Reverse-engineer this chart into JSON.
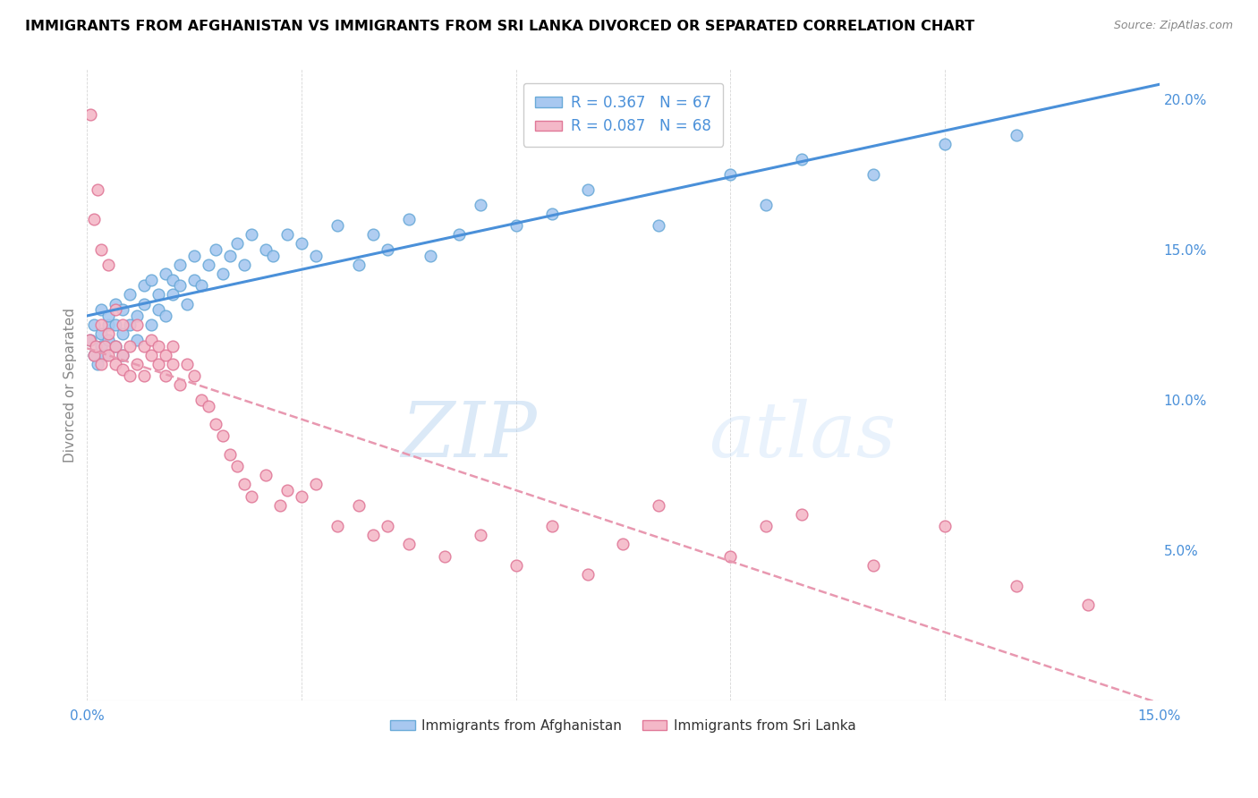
{
  "title": "IMMIGRANTS FROM AFGHANISTAN VS IMMIGRANTS FROM SRI LANKA DIVORCED OR SEPARATED CORRELATION CHART",
  "source": "Source: ZipAtlas.com",
  "ylabel": "Divorced or Separated",
  "legend_label1": "Immigrants from Afghanistan",
  "legend_label2": "Immigrants from Sri Lanka",
  "r1": 0.367,
  "n1": 67,
  "r2": 0.087,
  "n2": 68,
  "color1": "#a8c8f0",
  "color2": "#f4b8c8",
  "edge_color1": "#6aaad8",
  "edge_color2": "#e07898",
  "line_color1": "#4a90d9",
  "line_color2": "#e898b0",
  "xlim": [
    0.0,
    0.15
  ],
  "ylim": [
    0.0,
    0.21
  ],
  "xticks": [
    0.0,
    0.03,
    0.06,
    0.09,
    0.12,
    0.15
  ],
  "xtick_labels": [
    "0.0%",
    "",
    "",
    "",
    "",
    "15.0%"
  ],
  "yticks_right": [
    0.05,
    0.1,
    0.15,
    0.2
  ],
  "ytick_labels_right": [
    "5.0%",
    "10.0%",
    "15.0%",
    "20.0%"
  ],
  "watermark_zip": "ZIP",
  "watermark_atlas": "atlas",
  "afghanistan_x": [
    0.0005,
    0.001,
    0.001,
    0.0015,
    0.002,
    0.002,
    0.002,
    0.0025,
    0.003,
    0.003,
    0.003,
    0.004,
    0.004,
    0.004,
    0.005,
    0.005,
    0.005,
    0.006,
    0.006,
    0.007,
    0.007,
    0.008,
    0.008,
    0.009,
    0.009,
    0.01,
    0.01,
    0.011,
    0.011,
    0.012,
    0.012,
    0.013,
    0.013,
    0.014,
    0.015,
    0.015,
    0.016,
    0.017,
    0.018,
    0.019,
    0.02,
    0.021,
    0.022,
    0.023,
    0.025,
    0.026,
    0.028,
    0.03,
    0.032,
    0.035,
    0.038,
    0.04,
    0.042,
    0.045,
    0.048,
    0.052,
    0.055,
    0.06,
    0.065,
    0.07,
    0.08,
    0.09,
    0.095,
    0.1,
    0.11,
    0.12,
    0.13
  ],
  "afghanistan_y": [
    0.12,
    0.115,
    0.125,
    0.112,
    0.118,
    0.122,
    0.13,
    0.115,
    0.125,
    0.12,
    0.128,
    0.118,
    0.125,
    0.132,
    0.115,
    0.122,
    0.13,
    0.125,
    0.135,
    0.12,
    0.128,
    0.132,
    0.138,
    0.125,
    0.14,
    0.13,
    0.135,
    0.128,
    0.142,
    0.135,
    0.14,
    0.138,
    0.145,
    0.132,
    0.14,
    0.148,
    0.138,
    0.145,
    0.15,
    0.142,
    0.148,
    0.152,
    0.145,
    0.155,
    0.15,
    0.148,
    0.155,
    0.152,
    0.148,
    0.158,
    0.145,
    0.155,
    0.15,
    0.16,
    0.148,
    0.155,
    0.165,
    0.158,
    0.162,
    0.17,
    0.158,
    0.175,
    0.165,
    0.18,
    0.175,
    0.185,
    0.188
  ],
  "srilanka_x": [
    0.0003,
    0.0005,
    0.001,
    0.001,
    0.0012,
    0.0015,
    0.002,
    0.002,
    0.002,
    0.0025,
    0.003,
    0.003,
    0.003,
    0.004,
    0.004,
    0.004,
    0.005,
    0.005,
    0.005,
    0.006,
    0.006,
    0.007,
    0.007,
    0.008,
    0.008,
    0.009,
    0.009,
    0.01,
    0.01,
    0.011,
    0.011,
    0.012,
    0.012,
    0.013,
    0.014,
    0.015,
    0.016,
    0.017,
    0.018,
    0.019,
    0.02,
    0.021,
    0.022,
    0.023,
    0.025,
    0.027,
    0.028,
    0.03,
    0.032,
    0.035,
    0.038,
    0.04,
    0.042,
    0.045,
    0.05,
    0.055,
    0.06,
    0.065,
    0.07,
    0.075,
    0.08,
    0.09,
    0.095,
    0.1,
    0.11,
    0.12,
    0.13,
    0.14
  ],
  "srilanka_y": [
    0.12,
    0.195,
    0.115,
    0.16,
    0.118,
    0.17,
    0.112,
    0.125,
    0.15,
    0.118,
    0.115,
    0.122,
    0.145,
    0.112,
    0.118,
    0.13,
    0.11,
    0.115,
    0.125,
    0.108,
    0.118,
    0.112,
    0.125,
    0.108,
    0.118,
    0.115,
    0.12,
    0.112,
    0.118,
    0.108,
    0.115,
    0.112,
    0.118,
    0.105,
    0.112,
    0.108,
    0.1,
    0.098,
    0.092,
    0.088,
    0.082,
    0.078,
    0.072,
    0.068,
    0.075,
    0.065,
    0.07,
    0.068,
    0.072,
    0.058,
    0.065,
    0.055,
    0.058,
    0.052,
    0.048,
    0.055,
    0.045,
    0.058,
    0.042,
    0.052,
    0.065,
    0.048,
    0.058,
    0.062,
    0.045,
    0.058,
    0.038,
    0.032
  ]
}
